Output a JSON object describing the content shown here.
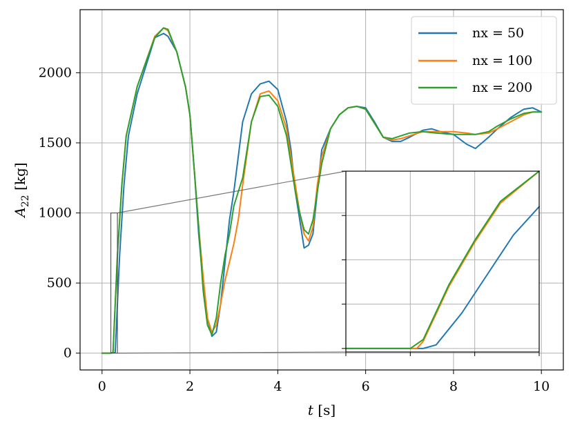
{
  "chart_data": {
    "type": "line",
    "xlabel_italic": "t",
    "xlabel_unit": "[s]",
    "ylabel_symbol": "A",
    "ylabel_sub": "22",
    "ylabel_unit": "[kg]",
    "xlim": [
      -0.5,
      10.5
    ],
    "ylim": [
      -120,
      2450
    ],
    "xticks": [
      0,
      2,
      4,
      6,
      8,
      10
    ],
    "yticks": [
      0,
      500,
      1000,
      1500,
      2000
    ],
    "xtick_labels": [
      "0",
      "2",
      "4",
      "6",
      "8",
      "10"
    ],
    "ytick_labels": [
      "0",
      "500",
      "1000",
      "1500",
      "2000"
    ],
    "grid": true,
    "legend_position": "top-right",
    "series": [
      {
        "name": "nx = 50",
        "color": "#1f77b4",
        "points": [
          [
            0,
            0
          ],
          [
            0.2,
            0
          ],
          [
            0.3,
            5
          ],
          [
            0.4,
            700
          ],
          [
            0.5,
            1200
          ],
          [
            0.6,
            1550
          ],
          [
            0.8,
            1850
          ],
          [
            1.0,
            2050
          ],
          [
            1.2,
            2250
          ],
          [
            1.4,
            2280
          ],
          [
            1.5,
            2260
          ],
          [
            1.7,
            2150
          ],
          [
            1.9,
            1900
          ],
          [
            2.0,
            1700
          ],
          [
            2.1,
            1300
          ],
          [
            2.2,
            850
          ],
          [
            2.3,
            500
          ],
          [
            2.4,
            250
          ],
          [
            2.5,
            120
          ],
          [
            2.6,
            150
          ],
          [
            2.7,
            350
          ],
          [
            2.8,
            650
          ],
          [
            2.9,
            950
          ],
          [
            3.0,
            1150
          ],
          [
            3.1,
            1400
          ],
          [
            3.2,
            1650
          ],
          [
            3.4,
            1850
          ],
          [
            3.6,
            1920
          ],
          [
            3.8,
            1940
          ],
          [
            4.0,
            1880
          ],
          [
            4.2,
            1650
          ],
          [
            4.3,
            1450
          ],
          [
            4.4,
            1150
          ],
          [
            4.5,
            950
          ],
          [
            4.6,
            750
          ],
          [
            4.7,
            770
          ],
          [
            4.8,
            850
          ],
          [
            4.9,
            1150
          ],
          [
            5.0,
            1450
          ],
          [
            5.2,
            1600
          ],
          [
            5.4,
            1700
          ],
          [
            5.6,
            1750
          ],
          [
            5.8,
            1760
          ],
          [
            6.0,
            1750
          ],
          [
            6.2,
            1650
          ],
          [
            6.4,
            1540
          ],
          [
            6.6,
            1510
          ],
          [
            6.8,
            1510
          ],
          [
            7.0,
            1540
          ],
          [
            7.3,
            1590
          ],
          [
            7.5,
            1600
          ],
          [
            7.7,
            1580
          ],
          [
            8.0,
            1560
          ],
          [
            8.3,
            1490
          ],
          [
            8.5,
            1460
          ],
          [
            8.8,
            1540
          ],
          [
            9.0,
            1600
          ],
          [
            9.3,
            1680
          ],
          [
            9.6,
            1740
          ],
          [
            9.8,
            1750
          ],
          [
            10.0,
            1720
          ]
        ]
      },
      {
        "name": "nx = 100",
        "color": "#ff7f0e",
        "points": [
          [
            0,
            0
          ],
          [
            0.2,
            0
          ],
          [
            0.25,
            5
          ],
          [
            0.35,
            700
          ],
          [
            0.45,
            1200
          ],
          [
            0.55,
            1550
          ],
          [
            0.8,
            1900
          ],
          [
            1.0,
            2080
          ],
          [
            1.2,
            2260
          ],
          [
            1.4,
            2320
          ],
          [
            1.5,
            2300
          ],
          [
            1.7,
            2150
          ],
          [
            1.9,
            1900
          ],
          [
            2.0,
            1700
          ],
          [
            2.1,
            1300
          ],
          [
            2.2,
            900
          ],
          [
            2.3,
            550
          ],
          [
            2.4,
            250
          ],
          [
            2.5,
            150
          ],
          [
            2.6,
            200
          ],
          [
            2.7,
            350
          ],
          [
            2.8,
            520
          ],
          [
            2.9,
            650
          ],
          [
            3.0,
            780
          ],
          [
            3.1,
            950
          ],
          [
            3.2,
            1200
          ],
          [
            3.4,
            1650
          ],
          [
            3.6,
            1850
          ],
          [
            3.8,
            1870
          ],
          [
            4.0,
            1800
          ],
          [
            4.2,
            1600
          ],
          [
            4.4,
            1200
          ],
          [
            4.5,
            1000
          ],
          [
            4.6,
            850
          ],
          [
            4.7,
            800
          ],
          [
            4.8,
            900
          ],
          [
            4.9,
            1200
          ],
          [
            5.0,
            1400
          ],
          [
            5.2,
            1600
          ],
          [
            5.4,
            1700
          ],
          [
            5.6,
            1750
          ],
          [
            5.8,
            1760
          ],
          [
            6.0,
            1740
          ],
          [
            6.2,
            1640
          ],
          [
            6.4,
            1540
          ],
          [
            6.6,
            1520
          ],
          [
            6.8,
            1530
          ],
          [
            7.0,
            1550
          ],
          [
            7.3,
            1580
          ],
          [
            7.6,
            1580
          ],
          [
            8.0,
            1580
          ],
          [
            8.3,
            1570
          ],
          [
            8.5,
            1560
          ],
          [
            8.8,
            1570
          ],
          [
            9.0,
            1600
          ],
          [
            9.3,
            1650
          ],
          [
            9.6,
            1700
          ],
          [
            9.8,
            1720
          ],
          [
            10.0,
            1720
          ]
        ]
      },
      {
        "name": "nx = 200",
        "color": "#2ca02c",
        "points": [
          [
            0,
            0
          ],
          [
            0.2,
            0
          ],
          [
            0.25,
            5
          ],
          [
            0.35,
            700
          ],
          [
            0.45,
            1200
          ],
          [
            0.55,
            1550
          ],
          [
            0.8,
            1900
          ],
          [
            1.0,
            2080
          ],
          [
            1.2,
            2250
          ],
          [
            1.4,
            2320
          ],
          [
            1.5,
            2310
          ],
          [
            1.7,
            2150
          ],
          [
            1.9,
            1900
          ],
          [
            2.0,
            1700
          ],
          [
            2.1,
            1300
          ],
          [
            2.2,
            900
          ],
          [
            2.3,
            450
          ],
          [
            2.4,
            200
          ],
          [
            2.5,
            130
          ],
          [
            2.6,
            250
          ],
          [
            2.7,
            500
          ],
          [
            2.8,
            700
          ],
          [
            2.9,
            850
          ],
          [
            3.0,
            1050
          ],
          [
            3.1,
            1150
          ],
          [
            3.2,
            1250
          ],
          [
            3.4,
            1650
          ],
          [
            3.6,
            1830
          ],
          [
            3.8,
            1840
          ],
          [
            4.0,
            1760
          ],
          [
            4.2,
            1550
          ],
          [
            4.4,
            1150
          ],
          [
            4.5,
            1000
          ],
          [
            4.6,
            880
          ],
          [
            4.7,
            850
          ],
          [
            4.8,
            950
          ],
          [
            4.9,
            1150
          ],
          [
            5.0,
            1350
          ],
          [
            5.2,
            1600
          ],
          [
            5.4,
            1700
          ],
          [
            5.6,
            1750
          ],
          [
            5.8,
            1760
          ],
          [
            6.0,
            1740
          ],
          [
            6.2,
            1640
          ],
          [
            6.4,
            1540
          ],
          [
            6.6,
            1530
          ],
          [
            6.8,
            1550
          ],
          [
            7.0,
            1570
          ],
          [
            7.3,
            1580
          ],
          [
            7.6,
            1570
          ],
          [
            8.0,
            1560
          ],
          [
            8.3,
            1560
          ],
          [
            8.5,
            1560
          ],
          [
            8.8,
            1580
          ],
          [
            9.0,
            1620
          ],
          [
            9.3,
            1670
          ],
          [
            9.6,
            1710
          ],
          [
            9.8,
            1720
          ],
          [
            10.0,
            1720
          ]
        ]
      }
    ],
    "inset": {
      "xlim": [
        0.2,
        0.35
      ],
      "ylim": [
        -20,
        1000
      ],
      "zoom_box": [
        [
          0.2,
          0
        ],
        [
          0.35,
          1000
        ]
      ],
      "series_points": [
        [
          [
            0.2,
            0
          ],
          [
            0.26,
            0
          ],
          [
            0.27,
            20
          ],
          [
            0.29,
            200
          ],
          [
            0.31,
            420
          ],
          [
            0.33,
            640
          ],
          [
            0.35,
            800
          ]
        ],
        [
          [
            0.2,
            0
          ],
          [
            0.255,
            0
          ],
          [
            0.26,
            40
          ],
          [
            0.28,
            350
          ],
          [
            0.3,
            600
          ],
          [
            0.32,
            820
          ],
          [
            0.35,
            1000
          ]
        ],
        [
          [
            0.2,
            0
          ],
          [
            0.25,
            0
          ],
          [
            0.26,
            50
          ],
          [
            0.28,
            360
          ],
          [
            0.3,
            610
          ],
          [
            0.32,
            830
          ],
          [
            0.35,
            1000
          ]
        ]
      ]
    }
  }
}
